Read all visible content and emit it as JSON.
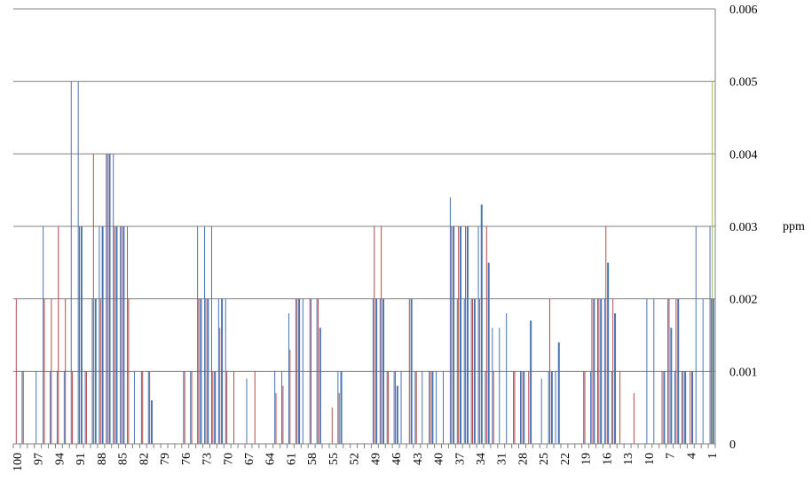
{
  "chart_data": {
    "type": "bar",
    "ylabel": "ppm",
    "y_axis_position": "right",
    "ylim": [
      0,
      0.006
    ],
    "yticks": [
      "0",
      "0.001",
      "0.002",
      "0.003",
      "0.004",
      "0.005",
      "0.006"
    ],
    "grid": true,
    "x_order": "descending",
    "categories": [
      "100",
      "99",
      "98",
      "97",
      "96",
      "95",
      "94",
      "93",
      "92",
      "91",
      "90",
      "89",
      "88",
      "87",
      "86",
      "85",
      "84",
      "83",
      "82",
      "81",
      "80",
      "79",
      "78",
      "77",
      "76",
      "75",
      "74",
      "73",
      "72",
      "71",
      "70",
      "69",
      "68",
      "67",
      "66",
      "65",
      "64",
      "63",
      "62",
      "61",
      "60",
      "59",
      "58",
      "57",
      "56",
      "55",
      "54",
      "53",
      "52",
      "51",
      "50",
      "49",
      "48",
      "47",
      "46",
      "45",
      "44",
      "43",
      "42",
      "41",
      "40",
      "39",
      "38",
      "37",
      "36",
      "35",
      "34",
      "33",
      "32",
      "31",
      "30",
      "29",
      "28",
      "27",
      "26",
      "25",
      "24",
      "23",
      "22",
      "21",
      "20",
      "19",
      "18",
      "17",
      "16",
      "15",
      "14",
      "13",
      "12",
      "11",
      "10",
      "9",
      "8",
      "7",
      "6",
      "5",
      "4",
      "3",
      "2",
      "1"
    ],
    "xtick_labels": [
      "100",
      "97",
      "94",
      "91",
      "88",
      "85",
      "82",
      "79",
      "76",
      "73",
      "70",
      "67",
      "64",
      "61",
      "58",
      "55",
      "52",
      "49",
      "46",
      "43",
      "40",
      "37",
      "34",
      "31",
      "28",
      "25",
      "22",
      "19",
      "16",
      "13",
      "10",
      "7",
      "4",
      "1"
    ],
    "colors": {
      "series1": "#4a74b3",
      "series2": "#b94a48",
      "series3": "#9bbb59",
      "grid": "#808080"
    },
    "series": [
      {
        "values": [
          0,
          0.001,
          0,
          0.001,
          0.003,
          0.001,
          0.001,
          0.001,
          0.005,
          0.005,
          0.001,
          0.002,
          0.003,
          0.004,
          0.004,
          0.003,
          0.003,
          0.001,
          0.001,
          0.001,
          0,
          0,
          0,
          0,
          0.001,
          0.001,
          0.003,
          0.003,
          0.003,
          0.002,
          0.002,
          0,
          0,
          0.0009,
          0,
          0,
          0,
          0.001,
          0.001,
          0.0018,
          0.002,
          0.002,
          0.002,
          0.002,
          0,
          0,
          0.001,
          0,
          0,
          0,
          0,
          0.002,
          0.002,
          0.001,
          0.001,
          0.001,
          0,
          0.001,
          0.001,
          0.001,
          0.001,
          0.001,
          0.0034,
          0.002,
          0.002,
          0.002,
          0.003,
          0.001,
          0.0016,
          0.0016,
          0.0018,
          0.001,
          0.001,
          0,
          0,
          0.0009,
          0.001,
          0.001,
          0,
          0,
          0,
          0.001,
          0.001,
          0.002,
          0.002,
          0.001,
          0,
          0,
          0,
          0,
          0.002,
          0.002,
          0,
          0.002,
          0.001,
          0.001,
          0,
          0.003,
          0.002,
          0.003
        ]
      },
      {
        "values": [
          0.002,
          0.001,
          0,
          0,
          0.002,
          0.002,
          0.003,
          0.002,
          0.001,
          0.003,
          0.001,
          0.004,
          0.002,
          0.004,
          0.003,
          0.003,
          0.002,
          0,
          0.001,
          0.001,
          0,
          0,
          0,
          0,
          0.001,
          0.001,
          0.002,
          0.002,
          0.001,
          0.0016,
          0.001,
          0.001,
          0,
          0,
          0.001,
          0,
          0,
          0.0007,
          0.0008,
          0.0013,
          0.002,
          0,
          0.002,
          0.002,
          0,
          0.0005,
          0.0007,
          0,
          0,
          0,
          0,
          0.003,
          0.003,
          0.001,
          0.001,
          0,
          0.002,
          0.001,
          0,
          0.001,
          0,
          0,
          0.003,
          0.003,
          0.003,
          0.002,
          0.002,
          0.003,
          0.001,
          0,
          0,
          0.001,
          0.001,
          0.001,
          0,
          0,
          0.002,
          0,
          0,
          0,
          0,
          0.001,
          0.002,
          0.002,
          0.003,
          0.002,
          0.001,
          0,
          0.0007,
          0,
          0,
          0,
          0.001,
          0.002,
          0.002,
          0.001,
          0.001,
          0,
          0,
          0.002
        ]
      },
      {
        "values": [
          0,
          0,
          0,
          0,
          0,
          0,
          0,
          0,
          0,
          0,
          0,
          0,
          0,
          0,
          0,
          0,
          0,
          0,
          0,
          0,
          0,
          0,
          0,
          0,
          0,
          0,
          0,
          0,
          0,
          0,
          0,
          0,
          0,
          0,
          0,
          0,
          0,
          0,
          0,
          0,
          0,
          0,
          0,
          0,
          0,
          0,
          0,
          0,
          0,
          0,
          0,
          0,
          0,
          0,
          0,
          0,
          0,
          0,
          0,
          0,
          0,
          0,
          0,
          0,
          0,
          0,
          0,
          0,
          0,
          0,
          0,
          0,
          0,
          0,
          0,
          0,
          0,
          0,
          0,
          0,
          0,
          0,
          0,
          0,
          0,
          0,
          0,
          0,
          0,
          0,
          0,
          0,
          0,
          0,
          0,
          0,
          0,
          0,
          0,
          0.005
        ]
      },
      {
        "values": [
          0,
          0,
          0,
          0,
          0,
          0,
          0,
          0,
          0,
          0.003,
          0,
          0.002,
          0.003,
          0.004,
          0.003,
          0.003,
          0,
          0,
          0,
          0.0006,
          0,
          0,
          0,
          0,
          0,
          0,
          0.002,
          0.002,
          0.001,
          0.002,
          0,
          0,
          0,
          0,
          0,
          0,
          0,
          0,
          0,
          0,
          0.002,
          0,
          0,
          0.0016,
          0,
          0,
          0.001,
          0,
          0,
          0,
          0,
          0.002,
          0.002,
          0,
          0.0008,
          0,
          0.002,
          0,
          0,
          0.001,
          0,
          0,
          0.003,
          0.003,
          0.003,
          0.002,
          0.0033,
          0.0025,
          0,
          0,
          0,
          0,
          0.001,
          0.0017,
          0,
          0,
          0.001,
          0.0014,
          0,
          0,
          0,
          0,
          0.002,
          0.002,
          0.0025,
          0.0018,
          0,
          0,
          0,
          0,
          0,
          0,
          0.001,
          0.0016,
          0.002,
          0.001,
          0.001,
          0,
          0,
          0.002
        ]
      }
    ]
  }
}
